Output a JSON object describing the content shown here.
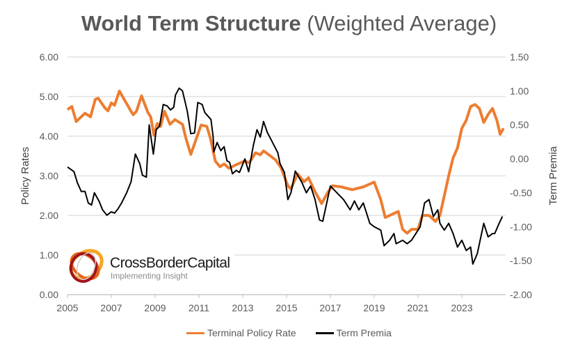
{
  "chart_data": {
    "type": "line",
    "title": "World Term Structure",
    "subtitle": "(Weighted Average)",
    "xlabel": "",
    "ylabel_left": "Policy Rates",
    "ylabel_right": "Term Premia",
    "xlim": [
      2005,
      2025
    ],
    "ylim_left": [
      0,
      6
    ],
    "ylim_right": [
      -2,
      1.5
    ],
    "x_ticks": [
      "2005",
      "2007",
      "2009",
      "2011",
      "2013",
      "2015",
      "2017",
      "2019",
      "2021",
      "2023"
    ],
    "y_ticks_left": [
      "0.00",
      "1.00",
      "2.00",
      "3.00",
      "4.00",
      "5.00",
      "6.00"
    ],
    "y_ticks_right": [
      "-2.00",
      "-1.50",
      "-1.00",
      "-0.50",
      "0.00",
      "0.50",
      "1.00",
      "1.50"
    ],
    "grid": true,
    "legend_position": "bottom",
    "series": [
      {
        "name": "Terminal Policy Rate",
        "axis": "left",
        "color": "#ED7D31",
        "x": [
          2005.0,
          2005.2,
          2005.4,
          2005.8,
          2006.05,
          2006.27,
          2006.4,
          2006.7,
          2006.85,
          2007.0,
          2007.15,
          2007.37,
          2007.63,
          2007.9,
          2008.0,
          2008.15,
          2008.38,
          2008.67,
          2008.8,
          2008.95,
          2009.1,
          2009.25,
          2009.43,
          2009.68,
          2009.9,
          2010.25,
          2010.4,
          2010.63,
          2011.1,
          2011.36,
          2011.52,
          2011.75,
          2011.96,
          2012.15,
          2012.37,
          2012.7,
          2013.07,
          2013.3,
          2013.58,
          2013.8,
          2013.95,
          2014.15,
          2014.5,
          2014.75,
          2015.06,
          2015.2,
          2015.5,
          2015.8,
          2016.0,
          2016.3,
          2016.6,
          2016.9,
          2017.1,
          2017.5,
          2018.0,
          2018.5,
          2019.0,
          2019.3,
          2019.5,
          2019.9,
          2020.1,
          2020.3,
          2020.5,
          2020.7,
          2021.0,
          2021.2,
          2021.5,
          2021.8,
          2022.0,
          2022.2,
          2022.4,
          2022.6,
          2022.8,
          2023.0,
          2023.2,
          2023.4,
          2023.6,
          2023.8,
          2024.0,
          2024.2,
          2024.4,
          2024.6,
          2024.75,
          2024.9
        ],
        "values": [
          4.67,
          4.75,
          4.37,
          4.58,
          4.49,
          4.93,
          4.96,
          4.72,
          4.64,
          4.84,
          4.78,
          5.14,
          4.89,
          4.63,
          4.54,
          4.63,
          5.02,
          4.6,
          4.49,
          4.02,
          4.32,
          4.25,
          4.63,
          4.3,
          4.42,
          4.3,
          3.96,
          3.54,
          4.28,
          4.25,
          3.96,
          3.37,
          3.23,
          3.3,
          3.19,
          3.28,
          3.37,
          3.33,
          3.58,
          3.53,
          3.63,
          3.55,
          3.4,
          3.2,
          2.75,
          2.67,
          3.05,
          2.85,
          2.95,
          2.6,
          2.3,
          2.6,
          2.75,
          2.72,
          2.65,
          2.72,
          2.84,
          2.4,
          1.95,
          2.05,
          2.1,
          1.65,
          1.55,
          1.65,
          1.65,
          2.0,
          2.0,
          1.85,
          2.0,
          2.5,
          3.0,
          3.45,
          3.7,
          4.2,
          4.4,
          4.75,
          4.8,
          4.7,
          4.35,
          4.55,
          4.7,
          4.4,
          4.05,
          4.2
        ]
      },
      {
        "name": "Term Premia",
        "axis": "right",
        "color": "#000000",
        "x": [
          2005.0,
          2005.3,
          2005.45,
          2005.63,
          2005.8,
          2005.95,
          2006.1,
          2006.23,
          2006.45,
          2006.6,
          2006.8,
          2007.0,
          2007.15,
          2007.3,
          2007.47,
          2007.7,
          2007.9,
          2008.1,
          2008.3,
          2008.42,
          2008.6,
          2008.73,
          2008.92,
          2009.05,
          2009.2,
          2009.37,
          2009.55,
          2009.7,
          2009.85,
          2009.93,
          2010.1,
          2010.25,
          2010.47,
          2010.63,
          2010.8,
          2010.95,
          2011.15,
          2011.27,
          2011.55,
          2011.65,
          2011.68,
          2011.83,
          2012.0,
          2012.15,
          2012.28,
          2012.4,
          2012.53,
          2012.7,
          2012.85,
          2013.1,
          2013.27,
          2013.48,
          2013.65,
          2013.8,
          2013.95,
          2014.12,
          2014.33,
          2014.6,
          2014.7,
          2014.9,
          2015.06,
          2015.2,
          2015.4,
          2015.7,
          2015.9,
          2016.1,
          2016.3,
          2016.5,
          2016.65,
          2016.8,
          2017.0,
          2017.3,
          2017.6,
          2017.9,
          2018.1,
          2018.3,
          2018.5,
          2018.8,
          2019.0,
          2019.3,
          2019.45,
          2019.7,
          2019.9,
          2020.0,
          2020.3,
          2020.5,
          2020.7,
          2020.9,
          2021.1,
          2021.3,
          2021.5,
          2021.7,
          2021.9,
          2022.0,
          2022.2,
          2022.4,
          2022.6,
          2022.8,
          2023.0,
          2023.2,
          2023.4,
          2023.5,
          2023.7,
          2023.9,
          2024.0,
          2024.2,
          2024.4,
          2024.5,
          2024.7,
          2024.85
        ],
        "values": [
          -0.12,
          -0.19,
          -0.35,
          -0.48,
          -0.48,
          -0.65,
          -0.68,
          -0.5,
          -0.63,
          -0.75,
          -0.83,
          -0.78,
          -0.8,
          -0.74,
          -0.65,
          -0.5,
          -0.34,
          0.07,
          -0.07,
          -0.24,
          -0.27,
          0.5,
          0.07,
          0.43,
          0.48,
          0.8,
          0.78,
          0.72,
          0.76,
          0.94,
          1.04,
          1.0,
          0.7,
          0.37,
          0.38,
          0.83,
          0.8,
          0.68,
          0.58,
          0.32,
          0.1,
          0.24,
          0.12,
          0.18,
          -0.03,
          -0.05,
          -0.22,
          -0.17,
          -0.2,
          0.0,
          -0.19,
          0.19,
          0.43,
          0.32,
          0.55,
          0.39,
          0.26,
          0.09,
          -0.07,
          -0.2,
          -0.6,
          -0.5,
          -0.18,
          -0.35,
          -0.5,
          -0.4,
          -0.6,
          -0.9,
          -0.92,
          -0.7,
          -0.4,
          -0.5,
          -0.6,
          -0.75,
          -0.62,
          -0.75,
          -0.65,
          -0.95,
          -1.0,
          -1.05,
          -1.28,
          -1.2,
          -1.1,
          -1.25,
          -1.2,
          -1.25,
          -1.2,
          -1.1,
          -1.0,
          -0.65,
          -0.6,
          -0.85,
          -0.75,
          -0.95,
          -1.05,
          -0.95,
          -1.1,
          -1.3,
          -1.2,
          -1.35,
          -1.3,
          -1.55,
          -1.4,
          -1.1,
          -0.95,
          -1.15,
          -1.1,
          -1.1,
          -0.95,
          -0.85
        ]
      }
    ]
  },
  "logo": {
    "name": "CrossBorderCapital",
    "tagline": "Implementing Insight"
  }
}
